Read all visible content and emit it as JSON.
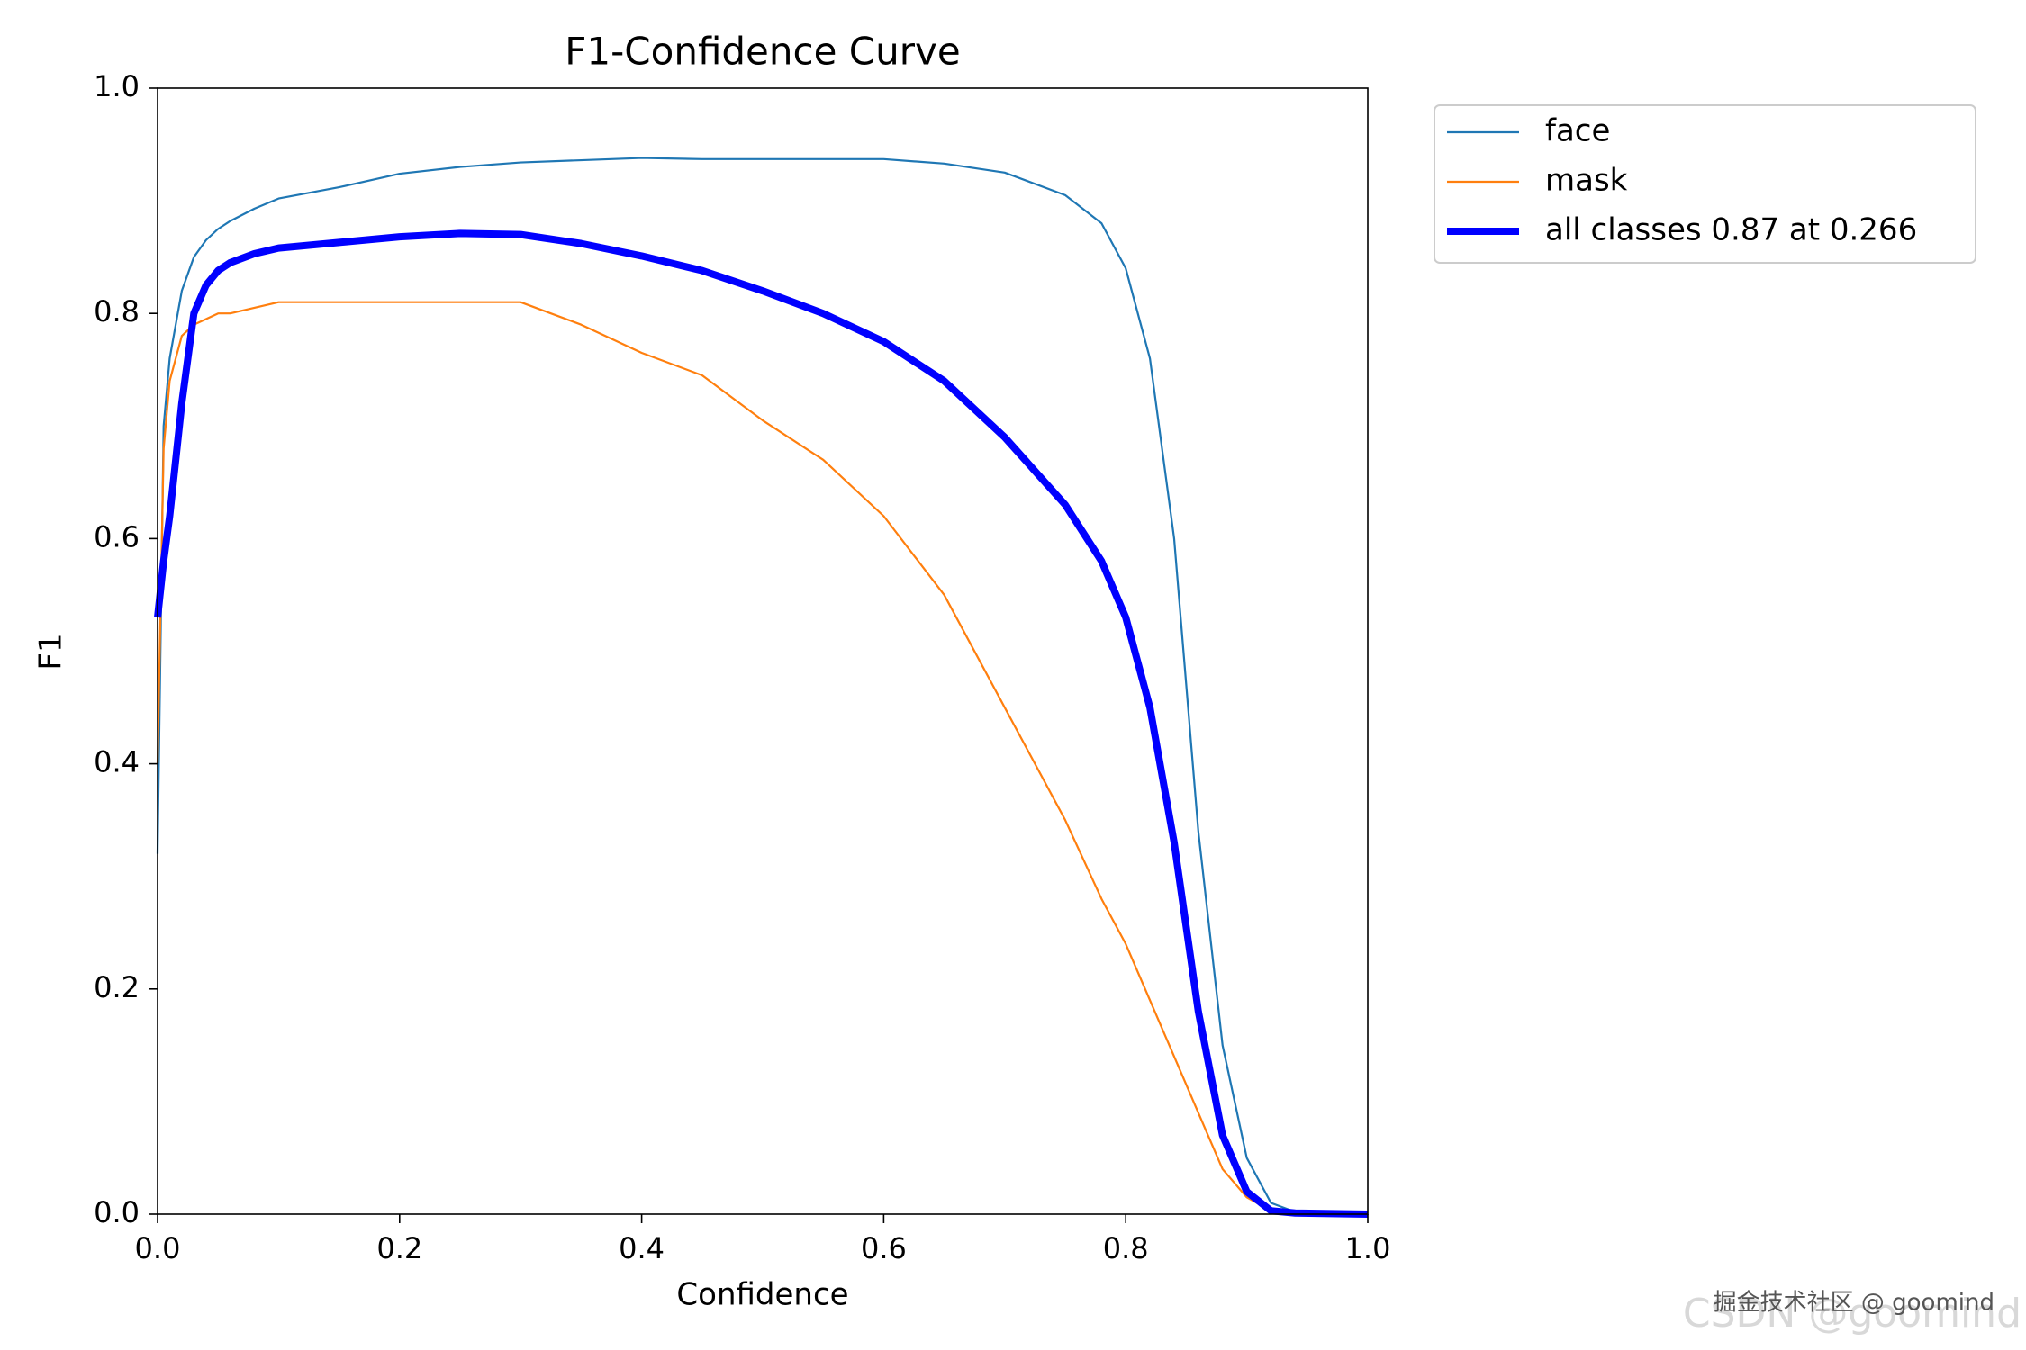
{
  "chart_data": {
    "type": "line",
    "title": "F1-Confidence Curve",
    "x_label": "Confidence",
    "y_label": "F1",
    "x": [
      0,
      0.005,
      0.01,
      0.02,
      0.03,
      0.04,
      0.05,
      0.06,
      0.08,
      0.1,
      0.15,
      0.2,
      0.25,
      0.3,
      0.35,
      0.4,
      0.45,
      0.5,
      0.55,
      0.6,
      0.65,
      0.7,
      0.75,
      0.78,
      0.8,
      0.82,
      0.84,
      0.86,
      0.88,
      0.9,
      0.92,
      0.94,
      1.0
    ],
    "series": [
      {
        "name": "face",
        "color": "#1f77b4",
        "linewidth": 2.2,
        "values": [
          0.32,
          0.7,
          0.76,
          0.82,
          0.85,
          0.865,
          0.875,
          0.882,
          0.893,
          0.902,
          0.912,
          0.924,
          0.93,
          0.934,
          0.936,
          0.938,
          0.937,
          0.937,
          0.937,
          0.937,
          0.933,
          0.925,
          0.905,
          0.88,
          0.84,
          0.76,
          0.6,
          0.34,
          0.15,
          0.05,
          0.01,
          0.002,
          0
        ]
      },
      {
        "name": "mask",
        "color": "#ff7f0e",
        "linewidth": 2.2,
        "values": [
          0.4,
          0.68,
          0.74,
          0.78,
          0.79,
          0.795,
          0.8,
          0.8,
          0.805,
          0.81,
          0.81,
          0.81,
          0.81,
          0.81,
          0.79,
          0.765,
          0.745,
          0.705,
          0.67,
          0.62,
          0.55,
          0.45,
          0.35,
          0.28,
          0.24,
          0.19,
          0.14,
          0.09,
          0.04,
          0.015,
          0.003,
          0.001,
          0
        ]
      },
      {
        "name": "all classes 0.87 at 0.266",
        "color": "#0000ff",
        "linewidth": 8,
        "values": [
          0.53,
          0.58,
          0.62,
          0.72,
          0.8,
          0.825,
          0.838,
          0.845,
          0.853,
          0.858,
          0.863,
          0.868,
          0.871,
          0.87,
          0.862,
          0.851,
          0.838,
          0.82,
          0.8,
          0.775,
          0.74,
          0.69,
          0.63,
          0.58,
          0.53,
          0.45,
          0.33,
          0.18,
          0.07,
          0.02,
          0.003,
          0.001,
          0
        ]
      }
    ],
    "xlim": [
      0,
      1
    ],
    "ylim": [
      0,
      1
    ],
    "xticks": [
      {
        "value": 0,
        "label": "0.0"
      },
      0.2,
      0.4,
      0.6,
      0.8,
      {
        "value": 1,
        "label": "1.0"
      }
    ],
    "yticks": [
      {
        "value": 0,
        "label": "0.0"
      },
      0.2,
      0.4,
      0.6,
      0.8,
      {
        "value": 1,
        "label": "1.0"
      }
    ],
    "grid": false,
    "legend": "outside upper right"
  },
  "watermark": {
    "main": "CSDN @goomind",
    "overlay": "掘金技术社区 @ goomind"
  }
}
